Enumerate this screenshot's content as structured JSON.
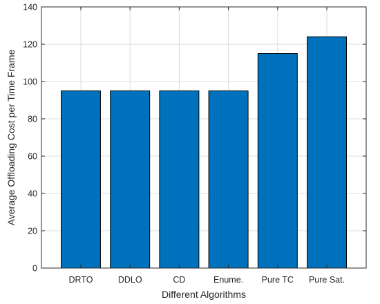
{
  "chart_data": {
    "type": "bar",
    "title": "",
    "xlabel": "Different Algorithms",
    "ylabel": "Average Offloading Cost per Time Frame",
    "categories": [
      "DRTO",
      "DDLO",
      "CD",
      "Enume.",
      "Pure TC",
      "Pure Sat."
    ],
    "values": [
      95,
      95,
      95,
      95,
      115,
      124
    ],
    "ylim": [
      0,
      140
    ],
    "yticks": [
      0,
      20,
      40,
      60,
      80,
      100,
      120,
      140
    ],
    "grid": true,
    "bar_color": "#0072bd",
    "bar_edge_color": "#000000"
  }
}
